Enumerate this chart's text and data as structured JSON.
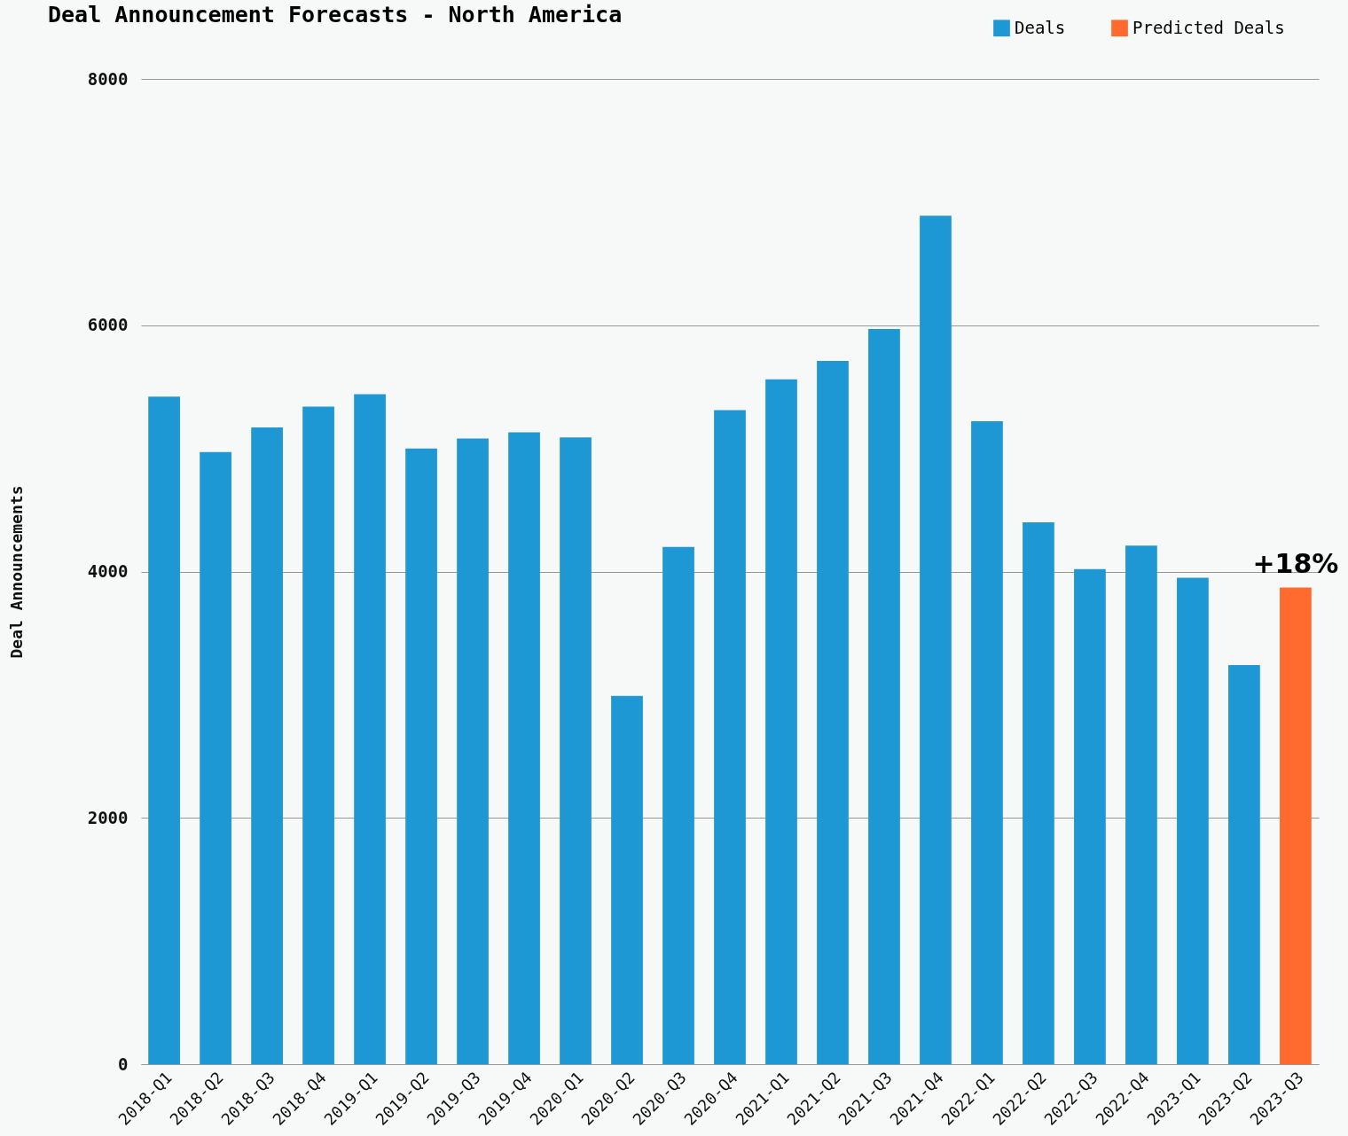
{
  "chart_data": {
    "type": "bar",
    "title": "Deal Announcement Forecasts - North America",
    "ylabel": "Deal Announcements",
    "categories": [
      "2018-Q1",
      "2018-Q2",
      "2018-Q3",
      "2018-Q4",
      "2019-Q1",
      "2019-Q2",
      "2019-Q3",
      "2019-Q4",
      "2020-Q1",
      "2020-Q2",
      "2020-Q3",
      "2020-Q4",
      "2021-Q1",
      "2021-Q2",
      "2021-Q3",
      "2021-Q4",
      "2022-Q1",
      "2022-Q2",
      "2022-Q3",
      "2022-Q4",
      "2023-Q1",
      "2023-Q2",
      "2023-Q3"
    ],
    "series": [
      {
        "name": "Deals",
        "color": "#1e98d5",
        "values": [
          5420,
          4970,
          5170,
          5340,
          5440,
          5000,
          5080,
          5130,
          5090,
          2990,
          4200,
          5310,
          5560,
          5710,
          5970,
          6890,
          5220,
          4400,
          4020,
          4210,
          3950,
          3240,
          null
        ]
      },
      {
        "name": "Predicted Deals",
        "color": "#ff6a2f",
        "values": [
          null,
          null,
          null,
          null,
          null,
          null,
          null,
          null,
          null,
          null,
          null,
          null,
          null,
          null,
          null,
          null,
          null,
          null,
          null,
          null,
          null,
          null,
          3870
        ]
      }
    ],
    "ylim": [
      0,
      8000
    ],
    "yticks": [
      0,
      2000,
      4000,
      6000,
      8000
    ],
    "grid": "y",
    "legend": "top right",
    "annotations": [
      {
        "text": "+18%",
        "x": "2023-Q3",
        "y": 3870
      }
    ]
  }
}
